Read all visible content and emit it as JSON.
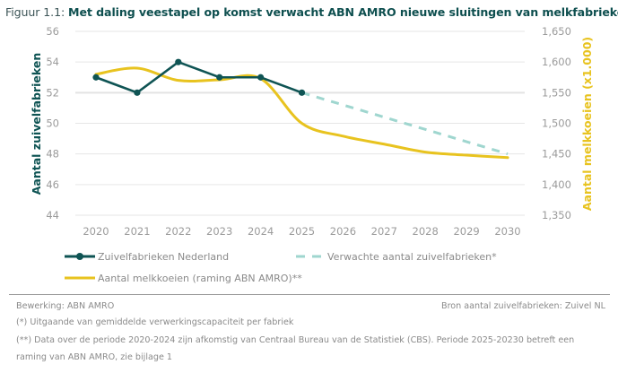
{
  "title": {
    "lead": "Figuur 1.1: ",
    "main": "Met daling veestapel op komst verwacht ABN AMRO nieuwe sluitingen van melkfabrieken"
  },
  "colors": {
    "dark_green": "#0f5454",
    "yellow": "#e8c31f",
    "dashed_teal": "#9fd6cf",
    "grid": "#e6e6e6",
    "tick": "#9b9b9b"
  },
  "chart_data": {
    "type": "line",
    "title": "Met daling veestapel op komst verwacht ABN AMRO nieuwe sluitingen van melkfabrieken",
    "x": [
      "2020",
      "2021",
      "2022",
      "2023",
      "2024",
      "2025",
      "2026",
      "2027",
      "2028",
      "2029",
      "2030"
    ],
    "ylabel": "Aantal zuivelfabrieken",
    "ylabel_right": "Aantal melkkoeien (x1.000)",
    "ylim": [
      44,
      56
    ],
    "yticks": [
      "56",
      "54",
      "52",
      "50",
      "48",
      "46",
      "44"
    ],
    "ylim_right": [
      1350,
      1650
    ],
    "yticks_right": [
      "1,650",
      "1,600",
      "1,550",
      "1,500",
      "1,450",
      "1,400",
      "1,350"
    ],
    "grid": true,
    "legend_position": "bottom",
    "series": [
      {
        "name": "Zuivelfabrieken Nederland",
        "axis": "left",
        "style": "solid-markers",
        "x": [
          "2020",
          "2021",
          "2022",
          "2023",
          "2024",
          "2025"
        ],
        "values": [
          53,
          52,
          54,
          53,
          53,
          52
        ]
      },
      {
        "name": "Verwachte aantal zuivelfabrieken*",
        "axis": "left",
        "style": "dashed",
        "x": [
          "2025",
          "2030"
        ],
        "values": [
          52,
          48
        ]
      },
      {
        "name": "Aantal melkkoeien (raming ABN AMRO)**",
        "axis": "right",
        "style": "smooth",
        "x": [
          "2020",
          "2021",
          "2022",
          "2023",
          "2024",
          "2025",
          "2026",
          "2027",
          "2028",
          "2029",
          "2030"
        ],
        "values": [
          1580,
          1590,
          1570,
          1571,
          1573,
          1500,
          1479,
          1466,
          1453,
          1448,
          1444
        ]
      }
    ]
  },
  "footer": {
    "source_left": "Bewerking: ABN AMRO",
    "source_right": "Bron aantal zuivelfabrieken: Zuivel NL",
    "note1": "(*) Uitgaande van gemiddelde verwerkingscapaciteit per fabriek",
    "note2a": "(**) Data over de periode 2020-2024 zijn afkomstig van Centraal Bureau van de Statistiek (CBS). Periode 2025-20230 betreft een",
    "note2b": "raming van ABN AMRO, zie bijlage 1"
  }
}
